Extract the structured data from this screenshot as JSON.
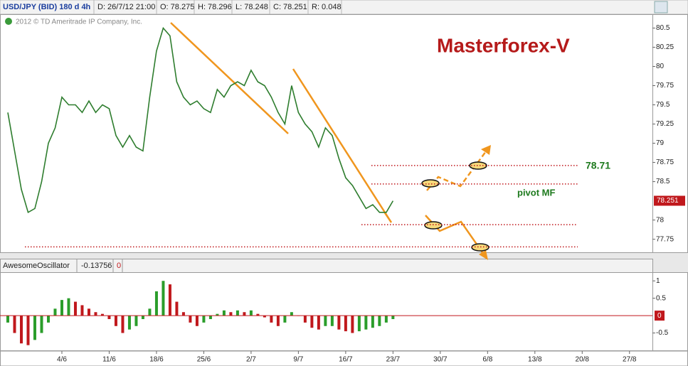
{
  "chart_data": [
    {
      "type": "line",
      "header": {
        "symbol": "USD/JPY (BID) 180 d 4h",
        "date": "D: 26/7/12 21:00",
        "open": "O: 78.275",
        "high": "H: 78.296",
        "low": "L: 78.248",
        "close": "C: 78.251",
        "range": "R: 0.048"
      },
      "copyright": "2012 © TD Ameritrade IP Company, Inc.",
      "title": "Masterforex-V",
      "annotations": [
        "78.71",
        "pivot MF"
      ],
      "last_label": "78.251",
      "last_value": 78.251,
      "color": "#2e7d2e",
      "values": [
        79.4,
        78.9,
        78.4,
        78.1,
        78.15,
        78.5,
        79.0,
        79.2,
        79.6,
        79.5,
        79.5,
        79.4,
        79.55,
        79.4,
        79.5,
        79.45,
        79.1,
        78.95,
        79.1,
        78.95,
        78.9,
        79.6,
        80.2,
        80.5,
        80.4,
        79.8,
        79.6,
        79.5,
        79.55,
        79.45,
        79.4,
        79.7,
        79.6,
        79.75,
        79.8,
        79.75,
        79.95,
        79.8,
        79.75,
        79.6,
        79.4,
        79.25,
        79.75,
        79.4,
        79.25,
        79.15,
        78.95,
        79.2,
        79.1,
        78.8,
        78.55,
        78.45,
        78.3,
        78.15,
        78.2,
        78.1,
        78.1,
        78.25,
        null,
        null,
        null,
        null,
        null,
        null,
        null,
        null,
        null,
        null,
        null,
        null,
        null,
        null,
        null,
        null,
        null,
        null,
        null,
        null,
        null,
        null,
        null,
        null,
        null,
        null,
        null,
        null,
        null,
        null,
        null,
        null,
        null,
        null,
        null,
        null,
        null,
        null
      ],
      "levels": [
        78.71,
        78.47,
        77.94,
        77.65
      ],
      "level_color": "#c0181c",
      "ylim": [
        77.58,
        80.68
      ],
      "yticks": [
        80.5,
        80.25,
        80,
        79.75,
        79.5,
        79.25,
        79,
        78.75,
        78.5,
        78,
        77.75
      ]
    },
    {
      "type": "bar",
      "name": "AwesomeOscillator",
      "value_label": "-0.13756",
      "param": "0",
      "up_color": "#2a9d2a",
      "down_color": "#c0181c",
      "categories": [
        null,
        null,
        null,
        null,
        null,
        null,
        null,
        null,
        "4/6",
        null,
        null,
        null,
        null,
        null,
        null,
        "11/6",
        null,
        null,
        null,
        null,
        null,
        null,
        "18/6",
        null,
        null,
        null,
        null,
        null,
        null,
        "25/6",
        null,
        null,
        null,
        null,
        null,
        null,
        "2/7",
        null,
        null,
        null,
        null,
        null,
        null,
        "9/7",
        null,
        null,
        null,
        null,
        null,
        null,
        "16/7",
        null,
        null,
        null,
        null,
        null,
        null,
        "23/7",
        null,
        null,
        null,
        null,
        null,
        null,
        "30/7",
        null,
        null,
        null,
        null,
        null,
        null,
        "6/8",
        null,
        null,
        null,
        null,
        null,
        null,
        "13/8",
        null,
        null,
        null,
        null,
        null,
        null,
        "20/8",
        null,
        null,
        null,
        null,
        null,
        null,
        "27/8",
        null,
        null,
        null
      ],
      "values": [
        -0.2,
        -0.5,
        -0.8,
        -0.85,
        -0.7,
        -0.5,
        -0.2,
        0.2,
        0.45,
        0.5,
        0.4,
        0.3,
        0.2,
        0.1,
        0.05,
        -0.1,
        -0.3,
        -0.5,
        -0.4,
        -0.3,
        -0.1,
        0.2,
        0.7,
        1.0,
        0.9,
        0.4,
        0.1,
        -0.2,
        -0.3,
        -0.2,
        -0.1,
        0.05,
        0.15,
        0.1,
        0.15,
        0.1,
        0.15,
        0.05,
        -0.05,
        -0.2,
        -0.3,
        -0.2,
        0.1,
        0.0,
        -0.2,
        -0.35,
        -0.4,
        -0.3,
        -0.3,
        -0.4,
        -0.45,
        -0.5,
        -0.45,
        -0.4,
        -0.35,
        -0.3,
        -0.2,
        -0.1,
        null,
        null,
        null,
        null,
        null,
        null,
        null,
        null,
        null,
        null,
        null,
        null,
        null,
        null,
        null,
        null,
        null,
        null,
        null,
        null,
        null,
        null,
        null,
        null,
        null,
        null,
        null,
        null,
        null,
        null,
        null,
        null,
        null,
        null,
        null,
        null,
        null,
        null
      ],
      "ylim": [
        -1.0,
        1.25
      ],
      "yticks": [
        1,
        0.5,
        0,
        -0.5
      ]
    }
  ]
}
